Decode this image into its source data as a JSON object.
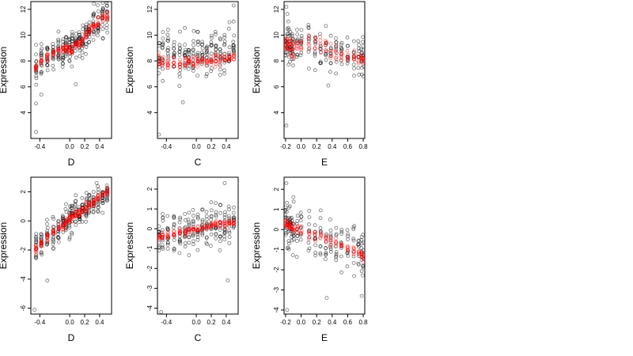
{
  "colors": {
    "observed": "#000000",
    "fitted": "#ff0000",
    "background": "#ffffff"
  },
  "chart_data": [
    {
      "type": "scatter",
      "row": 0,
      "col": 0,
      "xlabel": "D",
      "ylabel": "Expression",
      "xlim": [
        -0.52,
        0.56
      ],
      "ylim": [
        2.0,
        12.6
      ],
      "xticks": [
        -0.4,
        0.0,
        0.2,
        0.4
      ],
      "xtick_labels": [
        "-0.4",
        "0.0",
        "0.2",
        "0.4"
      ],
      "yticks": [
        4,
        6,
        8,
        10,
        12
      ],
      "ytick_labels": [
        "4",
        "6",
        "8",
        "10",
        "12"
      ],
      "grid": false,
      "x_groups": [
        -0.45,
        -0.38,
        -0.3,
        -0.22,
        -0.15,
        -0.09,
        -0.05,
        0.0,
        0.03,
        0.08,
        0.13,
        0.17,
        0.22,
        0.26,
        0.32,
        0.38,
        0.44,
        0.5
      ],
      "series": [
        {
          "role": "observed",
          "fit": [
            7.5,
            7.9,
            8.3,
            8.6,
            8.8,
            9.0,
            9.0,
            8.9,
            8.8,
            9.2,
            9.4,
            9.5,
            10.0,
            10.4,
            10.8,
            11.0,
            11.3,
            11.5
          ],
          "spread": 1.3,
          "n_per_group": 14,
          "outliers": [
            [
              -0.45,
              2.5
            ],
            [
              -0.45,
              4.7
            ],
            [
              -0.38,
              5.4
            ],
            [
              0.08,
              6.2
            ],
            [
              0.45,
              12.0
            ]
          ]
        },
        {
          "role": "fitted",
          "fit": [
            7.5,
            7.9,
            8.3,
            8.6,
            8.8,
            9.0,
            9.0,
            8.9,
            8.8,
            9.2,
            9.4,
            9.5,
            10.0,
            10.4,
            10.8,
            11.0,
            11.3,
            11.5
          ],
          "spread": 0.35,
          "n_per_group": 10
        }
      ]
    },
    {
      "type": "scatter",
      "row": 0,
      "col": 1,
      "xlabel": "C",
      "ylabel": "Expression",
      "xlim": [
        -0.52,
        0.56
      ],
      "ylim": [
        2.0,
        12.6
      ],
      "xticks": [
        -0.4,
        0.0,
        0.2,
        0.4
      ],
      "xtick_labels": [
        "-0.4",
        "0.0",
        "0.2",
        "0.4"
      ],
      "yticks": [
        4,
        6,
        8,
        10,
        12
      ],
      "ytick_labels": [
        "4",
        "6",
        "8",
        "10",
        "12"
      ],
      "grid": false,
      "x_groups": [
        -0.5,
        -0.45,
        -0.38,
        -0.3,
        -0.22,
        -0.15,
        -0.1,
        -0.04,
        0.02,
        0.08,
        0.14,
        0.2,
        0.26,
        0.32,
        0.38,
        0.44,
        0.5
      ],
      "series": [
        {
          "role": "observed",
          "fit": [
            8.3,
            8.5,
            8.7,
            8.5,
            8.4,
            8.5,
            8.6,
            8.4,
            8.5,
            8.6,
            8.7,
            8.6,
            8.7,
            8.8,
            9.0,
            9.1,
            9.3
          ],
          "spread": 1.7,
          "n_per_group": 12,
          "outliers": [
            [
              -0.5,
              2.3
            ],
            [
              -0.18,
              4.8
            ],
            [
              0.5,
              12.3
            ]
          ]
        },
        {
          "role": "fitted",
          "fit": [
            8.0,
            8.0,
            7.9,
            7.9,
            7.9,
            7.9,
            7.9,
            7.9,
            8.0,
            8.0,
            8.0,
            8.1,
            8.1,
            8.1,
            8.2,
            8.2,
            8.3
          ],
          "spread": 0.45,
          "n_per_group": 8
        }
      ]
    },
    {
      "type": "scatter",
      "row": 0,
      "col": 2,
      "xlabel": "E",
      "ylabel": "Expression",
      "xlim": [
        -0.22,
        0.82
      ],
      "ylim": [
        2.0,
        12.6
      ],
      "xticks": [
        -0.2,
        0.0,
        0.2,
        0.4,
        0.6,
        0.8
      ],
      "xtick_labels": [
        "-0.2",
        "0.0",
        "0.2",
        "0.4",
        "0.6",
        "0.8"
      ],
      "yticks": [
        4,
        6,
        8,
        10,
        12
      ],
      "ytick_labels": [
        "4",
        "6",
        "8",
        "10",
        "12"
      ],
      "grid": false,
      "x_groups": [
        -0.2,
        -0.18,
        -0.16,
        -0.14,
        -0.12,
        -0.1,
        -0.05,
        0.0,
        0.1,
        0.18,
        0.25,
        0.32,
        0.38,
        0.45,
        0.52,
        0.6,
        0.68,
        0.74,
        0.78,
        0.8
      ],
      "series": [
        {
          "role": "observed",
          "fit": [
            9.0,
            9.2,
            9.1,
            9.0,
            8.9,
            8.8,
            9.0,
            9.2,
            9.3,
            9.3,
            9.1,
            9.0,
            8.7,
            8.6,
            8.5,
            8.4,
            8.4,
            8.3,
            8.2,
            8.0
          ],
          "spread": 1.6,
          "n_per_group": 9,
          "outliers": [
            [
              -0.19,
              3.0
            ],
            [
              -0.19,
              12.2
            ],
            [
              0.35,
              6.1
            ]
          ]
        },
        {
          "role": "fitted",
          "fit": [
            9.4,
            9.5,
            9.3,
            9.1,
            9.0,
            8.9,
            9.2,
            9.4,
            9.5,
            9.4,
            9.2,
            9.0,
            8.8,
            8.6,
            8.5,
            8.4,
            8.3,
            8.2,
            8.1,
            8.0
          ],
          "spread": 0.7,
          "n_per_group": 6
        }
      ]
    },
    {
      "type": "scatter",
      "row": 1,
      "col": 0,
      "xlabel": "D",
      "ylabel": "Expression",
      "xlim": [
        -0.52,
        0.56
      ],
      "ylim": [
        -6.4,
        3.0
      ],
      "xticks": [
        -0.4,
        0.0,
        0.2,
        0.4
      ],
      "xtick_labels": [
        "-0.4",
        "0.0",
        "0.2",
        "0.4"
      ],
      "yticks": [
        -6,
        -4,
        -2,
        0,
        2
      ],
      "ytick_labels": [
        "-6",
        "-4",
        "-2",
        "0",
        "2"
      ],
      "grid": false,
      "x_groups": [
        -0.45,
        -0.38,
        -0.3,
        -0.22,
        -0.15,
        -0.09,
        -0.05,
        0.0,
        0.03,
        0.08,
        0.13,
        0.17,
        0.22,
        0.26,
        0.32,
        0.38,
        0.44,
        0.5
      ],
      "series": [
        {
          "role": "observed",
          "fit": [
            -1.9,
            -1.5,
            -1.1,
            -0.8,
            -0.5,
            -0.3,
            -0.1,
            0.1,
            0.3,
            0.5,
            0.6,
            0.7,
            0.9,
            1.1,
            1.3,
            1.5,
            1.8,
            2.0
          ],
          "spread": 1.1,
          "n_per_group": 14,
          "outliers": [
            [
              -0.47,
              -6.1
            ],
            [
              -0.3,
              -4.1
            ],
            [
              0.36,
              2.6
            ]
          ]
        },
        {
          "role": "fitted",
          "fit": [
            -1.9,
            -1.5,
            -1.1,
            -0.8,
            -0.5,
            -0.3,
            -0.1,
            0.1,
            0.3,
            0.5,
            0.6,
            0.7,
            0.9,
            1.1,
            1.3,
            1.5,
            1.8,
            2.0
          ],
          "spread": 0.28,
          "n_per_group": 10
        }
      ]
    },
    {
      "type": "scatter",
      "row": 1,
      "col": 1,
      "xlabel": "C",
      "ylabel": "Expression",
      "xlim": [
        -0.52,
        0.56
      ],
      "ylim": [
        -4.3,
        2.6
      ],
      "xticks": [
        -0.4,
        0.0,
        0.2,
        0.4
      ],
      "xtick_labels": [
        "-0.4",
        "0.0",
        "0.2",
        "0.4"
      ],
      "yticks": [
        -4,
        -3,
        -2,
        -1,
        0,
        1,
        2
      ],
      "ytick_labels": [
        "-4",
        "-3",
        "-2",
        "-1",
        "0",
        "1",
        "2"
      ],
      "grid": false,
      "x_groups": [
        -0.5,
        -0.45,
        -0.38,
        -0.3,
        -0.22,
        -0.15,
        -0.1,
        -0.04,
        0.02,
        0.08,
        0.14,
        0.2,
        0.26,
        0.32,
        0.38,
        0.44,
        0.5
      ],
      "series": [
        {
          "role": "observed",
          "fit": [
            -0.3,
            -0.2,
            -0.2,
            -0.1,
            -0.1,
            0.0,
            0.0,
            0.0,
            0.1,
            0.1,
            0.1,
            0.2,
            0.2,
            0.2,
            0.3,
            0.3,
            0.3
          ],
          "spread": 1.1,
          "n_per_group": 12,
          "outliers": [
            [
              -0.47,
              -4.2
            ],
            [
              0.42,
              -2.6
            ],
            [
              0.38,
              2.3
            ]
          ]
        },
        {
          "role": "fitted",
          "fit": [
            -0.4,
            -0.35,
            -0.3,
            -0.25,
            -0.2,
            -0.15,
            -0.1,
            -0.05,
            0.0,
            0.05,
            0.1,
            0.15,
            0.2,
            0.22,
            0.25,
            0.28,
            0.3
          ],
          "spread": 0.18,
          "n_per_group": 8
        }
      ]
    },
    {
      "type": "scatter",
      "row": 1,
      "col": 2,
      "xlabel": "E",
      "ylabel": "Expression",
      "xlim": [
        -0.22,
        0.82
      ],
      "ylim": [
        -4.2,
        2.6
      ],
      "xticks": [
        -0.2,
        0.0,
        0.2,
        0.4,
        0.6,
        0.8
      ],
      "xtick_labels": [
        "-0.2",
        "0.0",
        "0.2",
        "0.4",
        "0.6",
        "0.8"
      ],
      "yticks": [
        -4,
        -3,
        -2,
        -1,
        0,
        1,
        2
      ],
      "ytick_labels": [
        "-4",
        "-3",
        "-2",
        "-1",
        "0",
        "1",
        "2"
      ],
      "grid": false,
      "x_groups": [
        -0.2,
        -0.18,
        -0.16,
        -0.14,
        -0.12,
        -0.1,
        -0.05,
        0.0,
        0.1,
        0.18,
        0.25,
        0.32,
        0.38,
        0.45,
        0.52,
        0.6,
        0.68,
        0.74,
        0.78,
        0.8
      ],
      "series": [
        {
          "role": "observed",
          "fit": [
            0.2,
            0.3,
            0.2,
            0.1,
            0.0,
            0.0,
            0.0,
            -0.1,
            -0.2,
            -0.3,
            -0.4,
            -0.5,
            -0.6,
            -0.7,
            -0.8,
            -0.9,
            -1.0,
            -1.1,
            -1.2,
            -1.3
          ],
          "spread": 1.2,
          "n_per_group": 9,
          "outliers": [
            [
              -0.18,
              -4.0
            ],
            [
              0.33,
              -3.4
            ],
            [
              0.78,
              -3.3
            ],
            [
              -0.19,
              2.3
            ]
          ]
        },
        {
          "role": "fitted",
          "fit": [
            0.3,
            0.3,
            0.2,
            0.2,
            0.1,
            0.1,
            0.0,
            -0.1,
            -0.2,
            -0.3,
            -0.4,
            -0.5,
            -0.6,
            -0.7,
            -0.8,
            -0.9,
            -1.0,
            -1.1,
            -1.2,
            -1.3
          ],
          "spread": 0.25,
          "n_per_group": 6
        }
      ]
    }
  ]
}
